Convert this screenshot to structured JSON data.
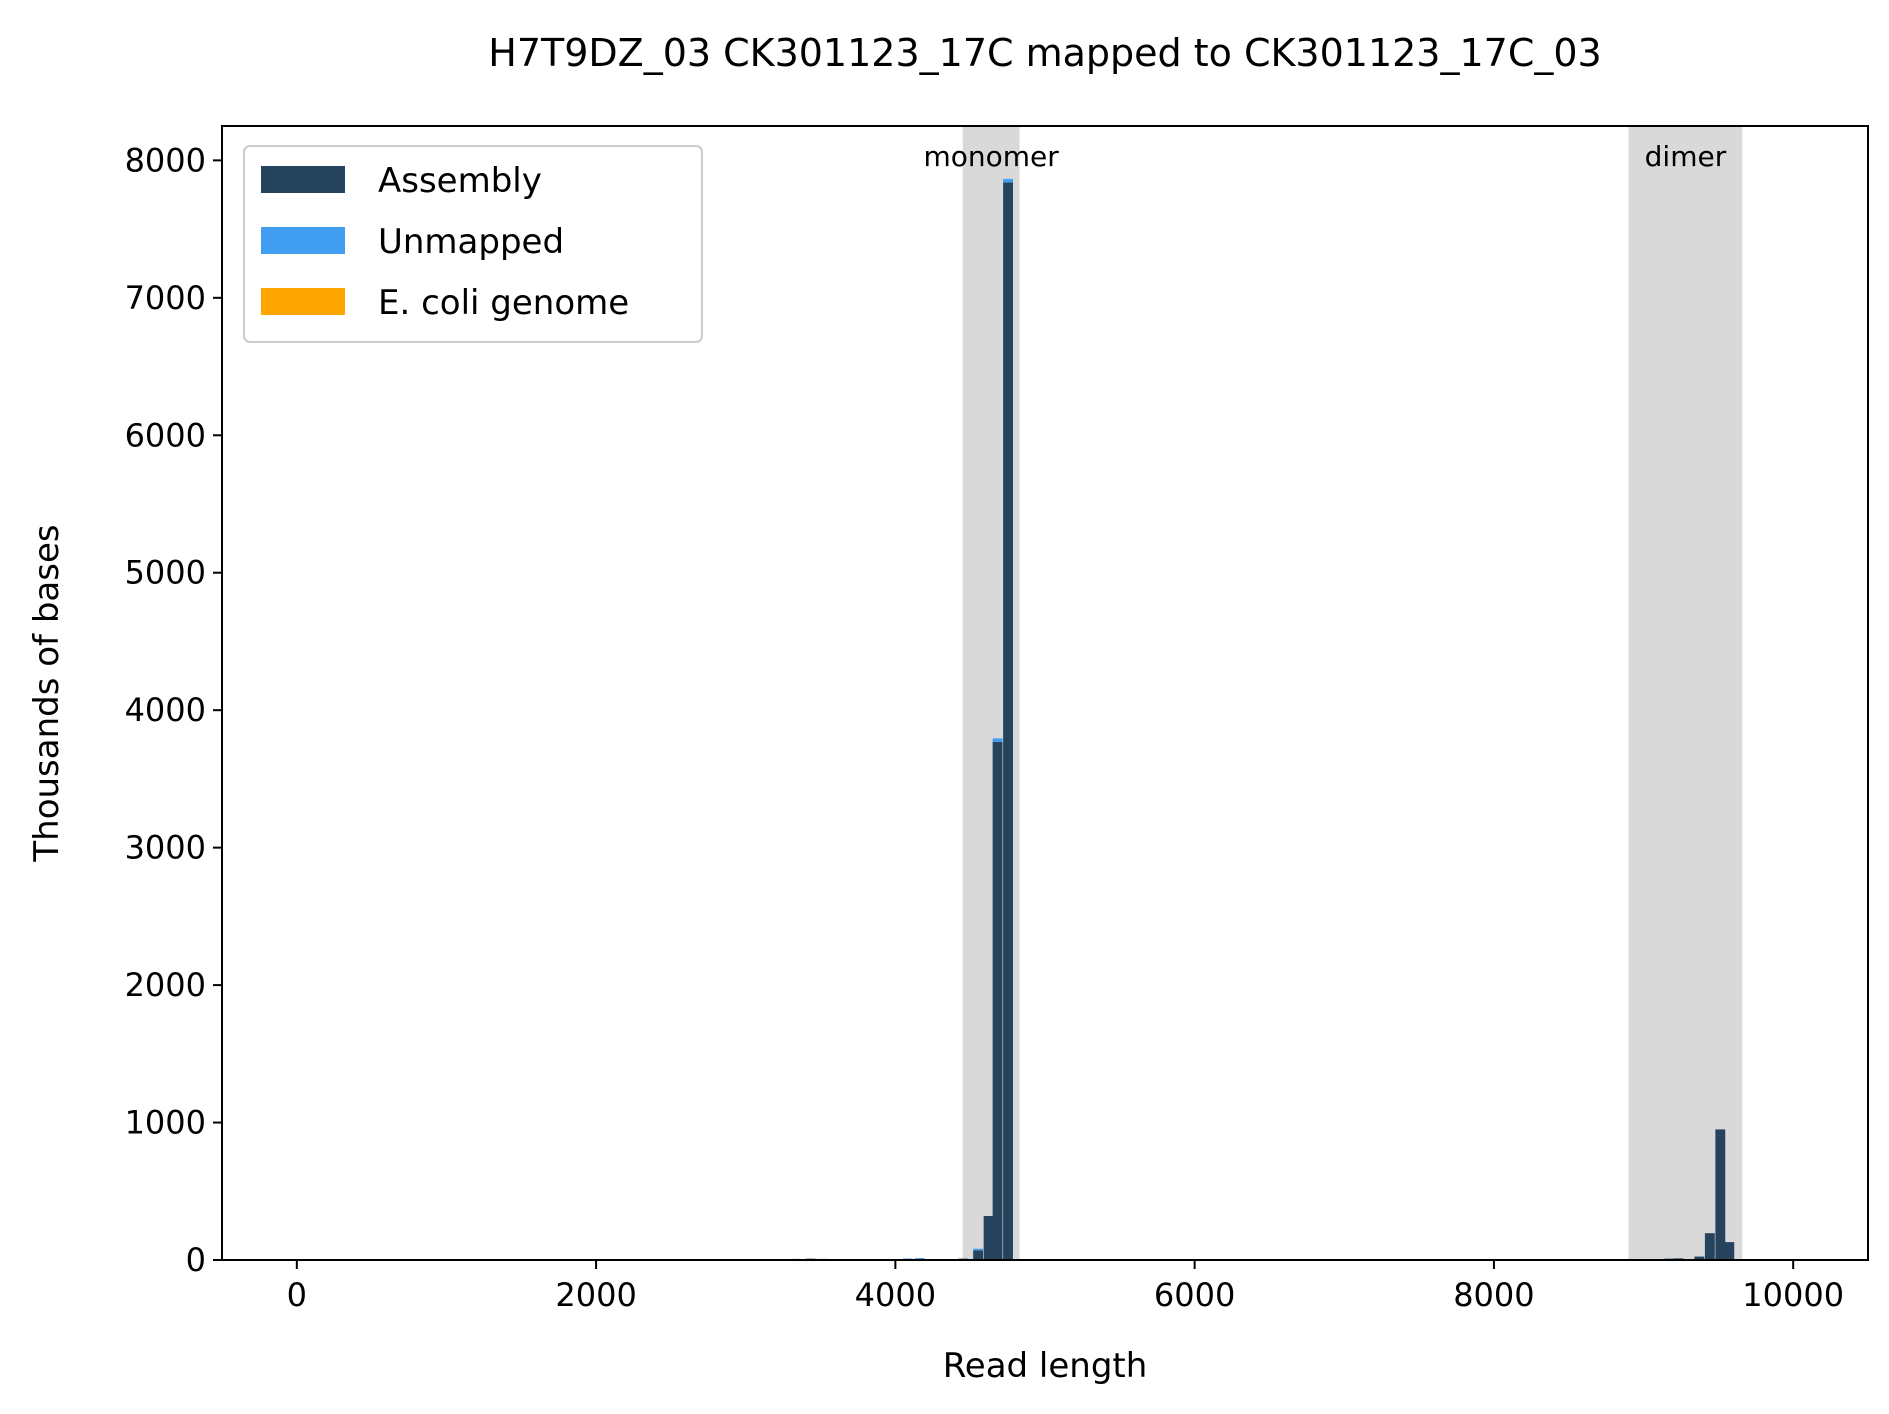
{
  "chart_data": {
    "type": "bar",
    "title": "H7T9DZ_03 CK301123_17C mapped to CK301123_17C_03",
    "xlabel": "Read length",
    "ylabel": "Thousands of bases",
    "xlim": [
      -500,
      10500
    ],
    "ylim": [
      0,
      8250
    ],
    "x_ticks": [
      0,
      2000,
      4000,
      6000,
      8000,
      10000
    ],
    "y_ticks": [
      0,
      1000,
      2000,
      3000,
      4000,
      5000,
      6000,
      7000,
      8000
    ],
    "x_tick_labels": [
      "0",
      "2000",
      "4000",
      "6000",
      "8000",
      "10000"
    ],
    "y_tick_labels": [
      "0",
      "1000",
      "2000",
      "3000",
      "4000",
      "5000",
      "6000",
      "7000",
      "8000"
    ],
    "bin_width": 66,
    "grid": false,
    "legend_position": "top-left",
    "stacked": true,
    "regions": [
      {
        "label": "monomer",
        "x0": 4450,
        "x1": 4830,
        "color": "#d9d9d9"
      },
      {
        "label": "dimer",
        "x0": 8900,
        "x1": 9660,
        "color": "#d9d9d9"
      }
    ],
    "series": [
      {
        "name": "Assembly",
        "color": "#26435d",
        "x": [
          1660,
          2330,
          2600,
          3000,
          3200,
          3300,
          3400,
          3480,
          4050,
          4130,
          4420,
          4520,
          4590,
          4650,
          4720,
          9140,
          9200,
          9340,
          9410,
          9480,
          9540
        ],
        "values": [
          6,
          5,
          5,
          5,
          6,
          8,
          10,
          8,
          7,
          6,
          10,
          70,
          320,
          3770,
          7840,
          10,
          12,
          25,
          195,
          950,
          130
        ]
      },
      {
        "name": "Unmapped",
        "color": "#419ef0",
        "x": [
          4050,
          4130,
          4250,
          4520,
          4650,
          4720
        ],
        "values": [
          4,
          8,
          6,
          12,
          25,
          25
        ]
      },
      {
        "name": "E. coli genome",
        "color": "#ffa500",
        "x": [],
        "values": []
      }
    ]
  }
}
